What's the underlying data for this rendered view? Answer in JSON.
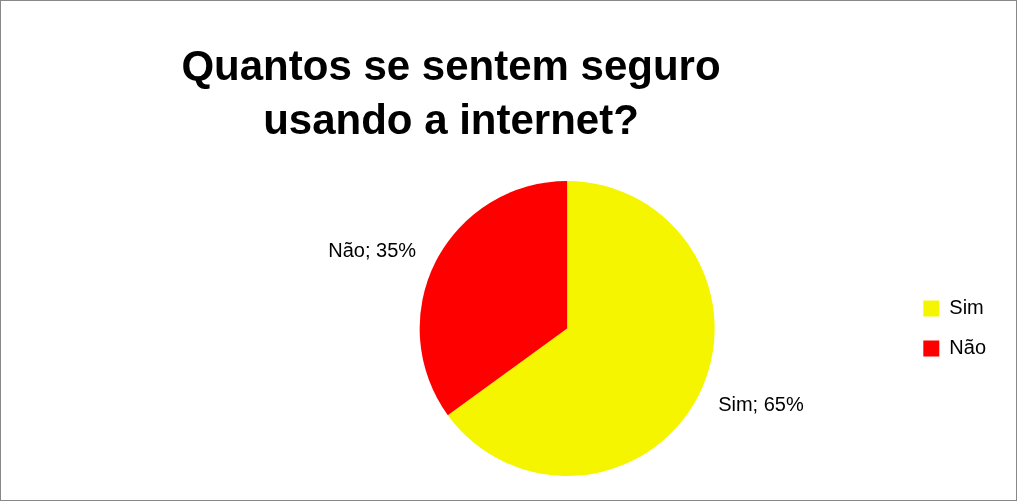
{
  "chart_data": {
    "type": "pie",
    "title": "Quantos se sentem seguro usando a internet?",
    "categories": [
      "Sim",
      "Não"
    ],
    "values": [
      65,
      35
    ],
    "colors": [
      "#f5f500",
      "#ff0000"
    ],
    "value_labels": [
      "Sim; 65%",
      "Não; 35%"
    ],
    "legend": "right"
  }
}
